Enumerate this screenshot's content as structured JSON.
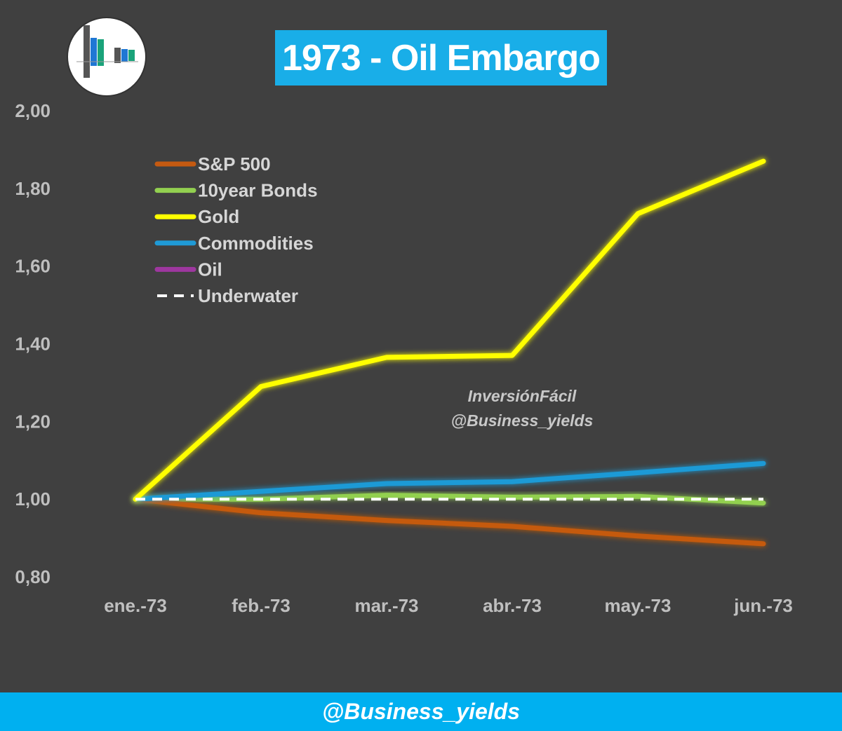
{
  "header": {
    "title": "1973 - Oil Embargo"
  },
  "watermark": {
    "line1": "InversiónFácil",
    "line2": "@Business_yields"
  },
  "footer": {
    "handle": "@Business_yields"
  },
  "thumbnail": {
    "icon": "mini-bar-chart-icon"
  },
  "colors": {
    "background": "#404040",
    "title_bg": "#19aee8",
    "footer_bg": "#00b0f0"
  },
  "chart_data": {
    "type": "line",
    "title": "1973 - Oil Embargo",
    "categories": [
      "ene.-73",
      "feb.-73",
      "mar.-73",
      "abr.-73",
      "may.-73",
      "jun.-73"
    ],
    "ylim": [
      0.8,
      2.0
    ],
    "yticks": [
      "2,00",
      "1,80",
      "1,60",
      "1,40",
      "1,20",
      "1,00",
      "0,80"
    ],
    "ytick_values": [
      2.0,
      1.8,
      1.6,
      1.4,
      1.2,
      1.0,
      0.8
    ],
    "grid": false,
    "legend_position": "top-left",
    "series": [
      {
        "name": "S&P 500",
        "color": "#c55a11",
        "dash": false,
        "values": [
          1.0,
          0.965,
          0.945,
          0.93,
          0.905,
          0.885
        ]
      },
      {
        "name": "10year Bonds",
        "color": "#92d050",
        "dash": false,
        "values": [
          1.0,
          1.0,
          1.01,
          1.005,
          1.007,
          0.99
        ]
      },
      {
        "name": "Gold",
        "color": "#ffff00",
        "dash": false,
        "values": [
          1.0,
          1.29,
          1.365,
          1.37,
          1.735,
          1.87
        ]
      },
      {
        "name": "Commodities",
        "color": "#1f9ad6",
        "dash": false,
        "values": [
          1.0,
          1.02,
          1.04,
          1.045,
          1.068,
          1.092
        ]
      },
      {
        "name": "Oil",
        "color": "#9e379f",
        "dash": false,
        "values": [
          1.0,
          1.0,
          1.0,
          1.0,
          1.0,
          1.0
        ]
      },
      {
        "name": "Underwater",
        "color": "#ffffff",
        "dash": true,
        "values": [
          1.0,
          1.0,
          1.0,
          1.0,
          1.0,
          1.0
        ]
      }
    ]
  }
}
